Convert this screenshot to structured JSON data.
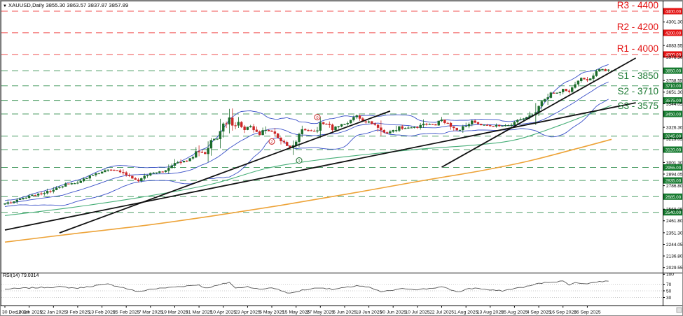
{
  "ui": {
    "title": "XAUUSD,Daily  3855.30 3863.57 3837.87 3857.89",
    "symbol_dropdown_icon": "▼",
    "rsi_label": "RSI(14) 79.0314"
  },
  "colors": {
    "up_candle": "#1a6b2a",
    "down_candle": "#cc2626",
    "bollinger_blue": "#3a50c8",
    "ma_green": "#46ae77",
    "ma_orange": "#eda338",
    "trendline_black": "#111111",
    "resistance_dash": "#f05050",
    "support_dash": "#4d9e66",
    "resistance_tag_bg": "#e41414",
    "support_tag_bg": "#167a2f",
    "rsi_line": "#555555",
    "grid_dotted": "#bdbdbd",
    "frame": "#555555"
  },
  "price_axis": {
    "ticks": [
      {
        "value": 4301.3,
        "label": "4301.30"
      },
      {
        "value": 4083.55,
        "label": "4083.55"
      },
      {
        "value": 3976.3,
        "label": "3976.30"
      },
      {
        "value": 3758.55,
        "label": "3758.55"
      },
      {
        "value": 3651.3,
        "label": "3651.30"
      },
      {
        "value": 3544.05,
        "label": "3544.05"
      },
      {
        "value": 3326.3,
        "label": "3326.30"
      },
      {
        "value": 3219.05,
        "label": "3219.05"
      },
      {
        "value": 3001.3,
        "label": "3001.30"
      },
      {
        "value": 2894.05,
        "label": "2894.05"
      },
      {
        "value": 2786.8,
        "label": "2786.80"
      },
      {
        "value": 2569.05,
        "label": "2569.05"
      },
      {
        "value": 2461.8,
        "label": "2461.80"
      },
      {
        "value": 2351.3,
        "label": "2351.30"
      },
      {
        "value": 2244.05,
        "label": "2244.05"
      },
      {
        "value": 2136.8,
        "label": "2136.80"
      },
      {
        "value": 2029.55,
        "label": "2029.55"
      }
    ]
  },
  "rsi_axis": {
    "ticks": [
      {
        "value": 100,
        "label": "100"
      },
      {
        "value": 70,
        "label": "70"
      },
      {
        "value": 50,
        "label": "50"
      },
      {
        "value": 30,
        "label": "30"
      }
    ],
    "dotted_levels": [
      70,
      50,
      30
    ]
  },
  "dates": [
    "30 Dec 2024",
    "10 Jan 2025",
    "22 Jan 2025",
    "3 Feb 2025",
    "13 Feb 2025",
    "25 Feb 2025",
    "7 Mar 2025",
    "19 Mar 2025",
    "31 Mar 2025",
    "10 Apr 2025",
    "23 Apr 2025",
    "5 May 2025",
    "15 May 2025",
    "27 May 2025",
    "6 Jun 2025",
    "18 Jun 2025",
    "30 Jun 2025",
    "10 Jul 2025",
    "22 Jul 2025",
    "1 Aug 2025",
    "13 Aug 2025",
    "25 Aug 2025",
    "4 Sep 2025",
    "16 Sep 2025",
    "26 Sep 2025"
  ],
  "chart_data": {
    "type": "candlestick",
    "instrument": "XAU/USD",
    "timeframe": "Daily",
    "title": "XAUUSD,Daily",
    "ohlc_display": {
      "open": 3855.3,
      "high": 3863.57,
      "low": 3837.87,
      "close": 3857.89
    },
    "bars": 200,
    "y_axis_range_estimate": [
      1990,
      4445
    ],
    "price_close_anchors": [
      [
        0,
        2620
      ],
      [
        4,
        2650
      ],
      [
        8,
        2690
      ],
      [
        12,
        2712
      ],
      [
        16,
        2750
      ],
      [
        20,
        2795
      ],
      [
        24,
        2815
      ],
      [
        28,
        2868
      ],
      [
        32,
        2920
      ],
      [
        34,
        2942
      ],
      [
        38,
        2912
      ],
      [
        42,
        2862
      ],
      [
        44,
        2840
      ],
      [
        48,
        2905
      ],
      [
        52,
        2918
      ],
      [
        56,
        2985
      ],
      [
        60,
        3022
      ],
      [
        62,
        3048
      ],
      [
        64,
        3115
      ],
      [
        66,
        3085
      ],
      [
        68,
        3225
      ],
      [
        70,
        3218
      ],
      [
        72,
        3335
      ],
      [
        74,
        3425
      ],
      [
        75,
        3292
      ],
      [
        77,
        3368
      ],
      [
        79,
        3318
      ],
      [
        81,
        3332
      ],
      [
        84,
        3252
      ],
      [
        86,
        3308
      ],
      [
        88,
        3282
      ],
      [
        92,
        3182
      ],
      [
        94,
        3138
      ],
      [
        96,
        3205
      ],
      [
        98,
        3292
      ],
      [
        100,
        3302
      ],
      [
        102,
        3282
      ],
      [
        104,
        3352
      ],
      [
        106,
        3356
      ],
      [
        108,
        3312
      ],
      [
        110,
        3332
      ],
      [
        112,
        3356
      ],
      [
        114,
        3392
      ],
      [
        116,
        3432
      ],
      [
        118,
        3388
      ],
      [
        120,
        3372
      ],
      [
        122,
        3352
      ],
      [
        124,
        3292
      ],
      [
        126,
        3272
      ],
      [
        128,
        3292
      ],
      [
        130,
        3330
      ],
      [
        132,
        3312
      ],
      [
        134,
        3332
      ],
      [
        136,
        3326
      ],
      [
        138,
        3356
      ],
      [
        140,
        3350
      ],
      [
        142,
        3346
      ],
      [
        144,
        3396
      ],
      [
        146,
        3362
      ],
      [
        148,
        3312
      ],
      [
        150,
        3292
      ],
      [
        152,
        3352
      ],
      [
        154,
        3380
      ],
      [
        156,
        3356
      ],
      [
        158,
        3346
      ],
      [
        160,
        3336
      ],
      [
        162,
        3342
      ],
      [
        164,
        3336
      ],
      [
        166,
        3342
      ],
      [
        168,
        3366
      ],
      [
        170,
        3396
      ],
      [
        172,
        3416
      ],
      [
        174,
        3446
      ],
      [
        176,
        3546
      ],
      [
        178,
        3592
      ],
      [
        180,
        3642
      ],
      [
        182,
        3646
      ],
      [
        184,
        3686
      ],
      [
        186,
        3662
      ],
      [
        188,
        3746
      ],
      [
        190,
        3772
      ],
      [
        192,
        3762
      ],
      [
        194,
        3822
      ],
      [
        196,
        3862
      ],
      [
        198,
        3852
      ],
      [
        199,
        3857.89
      ]
    ],
    "resistance_levels": [
      {
        "label": "R3 - 4400",
        "price": 4400,
        "tag": "4400.00"
      },
      {
        "label": "R2 - 4200",
        "price": 4200,
        "tag": "4200.00"
      },
      {
        "label": "R1 - 4000",
        "price": 4000,
        "tag": "4000.00"
      }
    ],
    "support_levels": [
      {
        "label": "S1 - 3850",
        "price": 3850,
        "tag": "3850.00"
      },
      {
        "label": "S2 - 3710",
        "price": 3710,
        "tag": "3710.00"
      },
      {
        "label": "S3 - 3575",
        "price": 3575,
        "tag": "3575.00"
      },
      {
        "label": "",
        "price": 3450,
        "tag": "3450.00"
      },
      {
        "label": "",
        "price": 3245,
        "tag": "3245.00"
      },
      {
        "label": "",
        "price": 3120,
        "tag": "3120.00"
      },
      {
        "label": "",
        "price": 2955,
        "tag": "2955.00"
      },
      {
        "label": "",
        "price": 2835,
        "tag": "2835.00"
      },
      {
        "label": "",
        "price": 2685,
        "tag": "2685.00"
      },
      {
        "label": "",
        "price": 2540,
        "tag": "2540.00"
      }
    ],
    "trendlines": [
      {
        "from_bar": 0,
        "from_price": 2377,
        "to_bar": 208,
        "to_price": 3553
      },
      {
        "from_bar": 18,
        "from_price": 2350,
        "to_bar": 127,
        "to_price": 3476
      },
      {
        "from_bar": 144,
        "from_price": 2958,
        "to_bar": 208,
        "to_price": 3967
      }
    ],
    "ma_green_anchors": [
      [
        0,
        2510
      ],
      [
        22,
        2585
      ],
      [
        45,
        2680
      ],
      [
        68,
        2800
      ],
      [
        86,
        2945
      ],
      [
        102,
        3020
      ],
      [
        119,
        3075
      ],
      [
        137,
        3125
      ],
      [
        156,
        3165
      ],
      [
        169,
        3215
      ],
      [
        183,
        3345
      ],
      [
        195,
        3475
      ],
      [
        200,
        3530
      ]
    ],
    "ma_orange_anchors": [
      [
        0,
        2265
      ],
      [
        22,
        2340
      ],
      [
        45,
        2415
      ],
      [
        68,
        2505
      ],
      [
        91,
        2605
      ],
      [
        114,
        2715
      ],
      [
        137,
        2830
      ],
      [
        156,
        2920
      ],
      [
        172,
        3010
      ],
      [
        188,
        3125
      ],
      [
        200,
        3215
      ]
    ],
    "bollinger": {
      "period": 20,
      "deviation": 2
    },
    "annotations": [
      {
        "text": "2",
        "color": "#cc2626",
        "bar": 88,
        "price": 3195
      },
      {
        "text": "1",
        "color": "#1a6b2a",
        "bar": 97,
        "price": 3020
      },
      {
        "text": "0",
        "color": "#cc2626",
        "bar": 103,
        "price": 3420
      }
    ],
    "rsi": {
      "period": 14,
      "current": 79.0314,
      "anchors": [
        [
          0,
          55
        ],
        [
          6,
          58
        ],
        [
          12,
          60
        ],
        [
          18,
          62
        ],
        [
          24,
          58
        ],
        [
          30,
          66
        ],
        [
          34,
          70
        ],
        [
          38,
          62
        ],
        [
          44,
          47
        ],
        [
          48,
          55
        ],
        [
          54,
          60
        ],
        [
          60,
          65
        ],
        [
          64,
          68
        ],
        [
          66,
          58
        ],
        [
          70,
          66
        ],
        [
          74,
          76
        ],
        [
          76,
          58
        ],
        [
          80,
          63
        ],
        [
          84,
          54
        ],
        [
          88,
          60
        ],
        [
          94,
          42
        ],
        [
          98,
          52
        ],
        [
          104,
          60
        ],
        [
          108,
          54
        ],
        [
          114,
          62
        ],
        [
          116,
          66
        ],
        [
          120,
          60
        ],
        [
          124,
          47
        ],
        [
          128,
          52
        ],
        [
          132,
          57
        ],
        [
          136,
          54
        ],
        [
          140,
          57
        ],
        [
          144,
          62
        ],
        [
          148,
          50
        ],
        [
          150,
          46
        ],
        [
          152,
          56
        ],
        [
          156,
          58
        ],
        [
          160,
          52
        ],
        [
          164,
          50
        ],
        [
          168,
          57
        ],
        [
          172,
          63
        ],
        [
          176,
          72
        ],
        [
          180,
          77
        ],
        [
          184,
          79
        ],
        [
          186,
          69
        ],
        [
          188,
          74
        ],
        [
          192,
          72
        ],
        [
          196,
          78
        ],
        [
          199,
          79.03
        ]
      ]
    }
  }
}
